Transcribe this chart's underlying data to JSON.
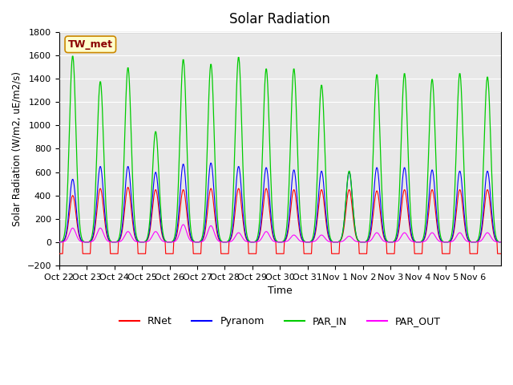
{
  "title": "Solar Radiation",
  "ylabel": "Solar Radiation (W/m2, uE/m2/s)",
  "xlabel": "Time",
  "ylim": [
    -200,
    1800
  ],
  "yticks": [
    -200,
    0,
    200,
    400,
    600,
    800,
    1000,
    1200,
    1400,
    1600,
    1800
  ],
  "xtick_labels": [
    "Oct 22",
    "Oct 23",
    "Oct 24",
    "Oct 25",
    "Oct 26",
    "Oct 27",
    "Oct 28",
    "Oct 29",
    "Oct 30",
    "Oct 31",
    "Nov 1",
    "Nov 2",
    "Nov 3",
    "Nov 4",
    "Nov 5",
    "Nov 6"
  ],
  "station_label": "TW_met",
  "colors": {
    "RNet": "#ff0000",
    "Pyranom": "#0000ff",
    "PAR_IN": "#00cc00",
    "PAR_OUT": "#ff00ff"
  },
  "bg_color": "#e8e8e8",
  "n_days": 16,
  "points_per_day": 48,
  "rnet_day_peaks": [
    400,
    460,
    470,
    450,
    450,
    460,
    460,
    460,
    450,
    450,
    450,
    440,
    450,
    450,
    450,
    450
  ],
  "pyranom_day_peaks": [
    540,
    650,
    650,
    600,
    670,
    680,
    650,
    640,
    620,
    610,
    600,
    640,
    640,
    620,
    610,
    610
  ],
  "par_in_day_peaks": [
    1600,
    1380,
    1500,
    950,
    1570,
    1530,
    1590,
    1490,
    1490,
    1350,
    610,
    1440,
    1450,
    1400,
    1450,
    1420
  ],
  "par_out_day_peaks": [
    120,
    120,
    90,
    90,
    150,
    140,
    80,
    90,
    60,
    60,
    50,
    80,
    80,
    80,
    80,
    80
  ],
  "rnet_night": -100,
  "grid_color": "#ffffff",
  "grid_alpha": 1.0
}
